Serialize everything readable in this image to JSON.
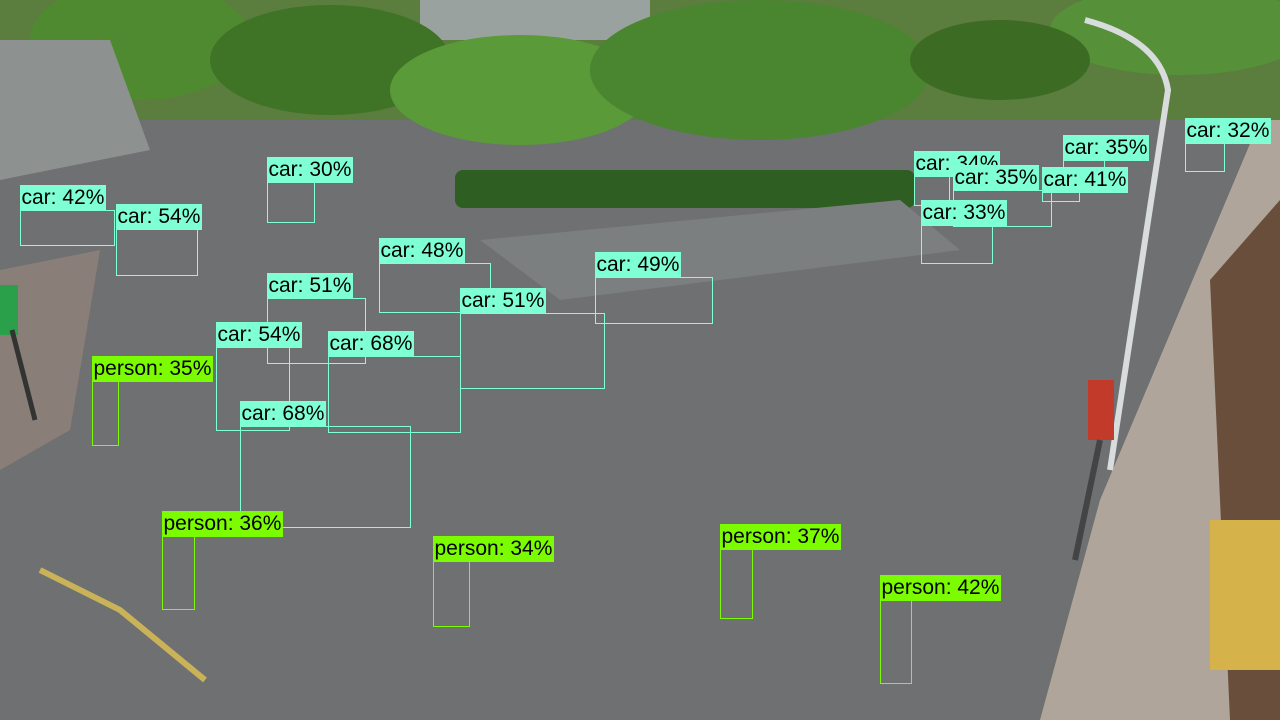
{
  "colors": {
    "car": "#7fffd4",
    "person": "#7cfc00",
    "road": "#6e7072",
    "trees": "#4a7a2e"
  },
  "detections": [
    {
      "cls": "car",
      "label": "car: 42%"
    },
    {
      "cls": "car",
      "label": "car: 54%"
    },
    {
      "cls": "car",
      "label": "car: 30%"
    },
    {
      "cls": "car",
      "label": "car: 48%"
    },
    {
      "cls": "car",
      "label": "car: 49%"
    },
    {
      "cls": "car",
      "label": "car: 51%"
    },
    {
      "cls": "car",
      "label": "car: 51%"
    },
    {
      "cls": "car",
      "label": "car: 54%"
    },
    {
      "cls": "car",
      "label": "car: 68%"
    },
    {
      "cls": "car",
      "label": "car: 68%"
    },
    {
      "cls": "car",
      "label": "car: 34%"
    },
    {
      "cls": "car",
      "label": "car: 35%"
    },
    {
      "cls": "car",
      "label": "car: 41%"
    },
    {
      "cls": "car",
      "label": "car: 35%"
    },
    {
      "cls": "car",
      "label": "car: 33%"
    },
    {
      "cls": "car",
      "label": "car: 32%"
    },
    {
      "cls": "person",
      "label": "person: 35%"
    },
    {
      "cls": "person",
      "label": "person: 36%"
    },
    {
      "cls": "person",
      "label": "person: 34%"
    },
    {
      "cls": "person",
      "label": "person: 37%"
    },
    {
      "cls": "person",
      "label": "person: 42%"
    }
  ]
}
